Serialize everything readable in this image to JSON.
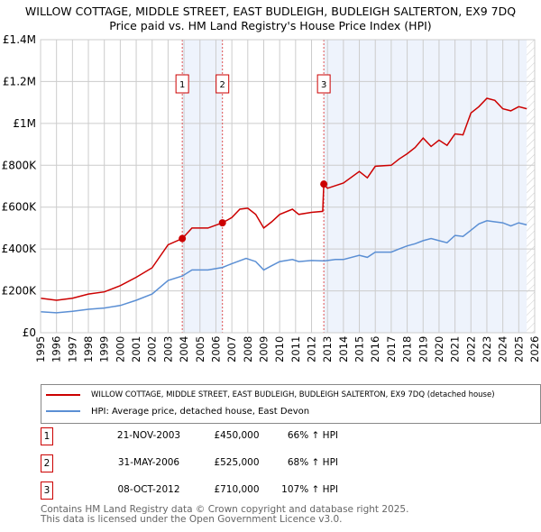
{
  "title": "WILLOW COTTAGE, MIDDLE STREET, EAST BUDLEIGH, BUDLEIGH SALTERTON, EX9 7DQ",
  "subtitle": "Price paid vs. HM Land Registry's House Price Index (HPI)",
  "legend": {
    "property": "WILLOW COTTAGE, MIDDLE STREET, EAST BUDLEIGH, BUDLEIGH SALTERTON, EX9 7DQ (detached house)",
    "hpi": "HPI: Average price, detached house, East Devon"
  },
  "transactions": [
    {
      "num": "1",
      "date": "21-NOV-2003",
      "price": "£450,000",
      "hpi": "66% ↑ HPI"
    },
    {
      "num": "2",
      "date": "31-MAY-2006",
      "price": "£525,000",
      "hpi": "68% ↑ HPI"
    },
    {
      "num": "3",
      "date": "08-OCT-2012",
      "price": "£710,000",
      "hpi": "107% ↑ HPI"
    }
  ],
  "footer": {
    "line1": "Contains HM Land Registry data © Crown copyright and database right 2025.",
    "line2": "This data is licensed under the Open Government Licence v3.0."
  },
  "colors": {
    "property": "#cc0000",
    "hpi": "#5b8fd4",
    "shade": "#eef3fc"
  },
  "chart_data": {
    "type": "line",
    "xlim": [
      1995,
      2026
    ],
    "ylim": [
      0,
      1400000
    ],
    "yticks": [
      0,
      200000,
      400000,
      600000,
      800000,
      1000000,
      1200000,
      1400000
    ],
    "ytick_labels": [
      "£0",
      "£200K",
      "£400K",
      "£600K",
      "£800K",
      "£1M",
      "£1.2M",
      "£1.4M"
    ],
    "xticks": [
      "1995",
      "1996",
      "1997",
      "1998",
      "1999",
      "2000",
      "2001",
      "2002",
      "2003",
      "2004",
      "2005",
      "2006",
      "2007",
      "2008",
      "2009",
      "2010",
      "2011",
      "2012",
      "2013",
      "2014",
      "2015",
      "2016",
      "2017",
      "2018",
      "2019",
      "2020",
      "2021",
      "2022",
      "2023",
      "2024",
      "2025",
      "2026"
    ],
    "shaded_ranges": [
      [
        2003.89,
        2006.41
      ],
      [
        2012.77,
        2025.5
      ]
    ],
    "hatched_from": 2025.5,
    "sales": [
      {
        "label": "1",
        "x": 2003.89,
        "y": 450000
      },
      {
        "label": "2",
        "x": 2006.41,
        "y": 525000
      },
      {
        "label": "3",
        "x": 2012.77,
        "y": 710000
      }
    ],
    "series": [
      {
        "name": "property",
        "x": [
          1995,
          1996,
          1997,
          1998,
          1999,
          2000,
          2001,
          2002,
          2003,
          2003.89,
          2004.5,
          2005.5,
          2006.41,
          2007,
          2007.5,
          2008,
          2008.5,
          2009,
          2009.5,
          2010,
          2010.8,
          2011.2,
          2012,
          2012.7,
          2012.77,
          2013,
          2014,
          2015,
          2015.5,
          2016,
          2017,
          2017.5,
          2018,
          2018.5,
          2019,
          2019.5,
          2020,
          2020.5,
          2021,
          2021.5,
          2022,
          2022.5,
          2023,
          2023.5,
          2024,
          2024.5,
          2025,
          2025.5
        ],
        "y": [
          165000,
          155000,
          165000,
          185000,
          195000,
          225000,
          265000,
          310000,
          420000,
          450000,
          500000,
          500000,
          525000,
          550000,
          590000,
          595000,
          565000,
          500000,
          530000,
          565000,
          590000,
          565000,
          575000,
          580000,
          710000,
          690000,
          715000,
          770000,
          740000,
          795000,
          800000,
          830000,
          855000,
          885000,
          930000,
          890000,
          920000,
          895000,
          950000,
          945000,
          1050000,
          1080000,
          1120000,
          1110000,
          1070000,
          1060000,
          1080000,
          1070000
        ]
      },
      {
        "name": "hpi",
        "x": [
          1995,
          1996,
          1997,
          1998,
          1999,
          2000,
          2001,
          2002,
          2003,
          2003.89,
          2004.5,
          2005.5,
          2006.41,
          2007,
          2007.9,
          2008.5,
          2009,
          2009.5,
          2010,
          2010.8,
          2011.2,
          2012,
          2012.8,
          2013.5,
          2014,
          2015,
          2015.5,
          2016,
          2017,
          2017.5,
          2018,
          2018.5,
          2019,
          2019.5,
          2020,
          2020.5,
          2021,
          2021.5,
          2022,
          2022.5,
          2023,
          2023.5,
          2024,
          2024.5,
          2025,
          2025.5
        ],
        "y": [
          100000,
          95000,
          102000,
          112000,
          118000,
          130000,
          155000,
          185000,
          250000,
          271000,
          300000,
          300000,
          312000,
          330000,
          355000,
          340000,
          300000,
          320000,
          340000,
          350000,
          340000,
          345000,
          343000,
          350000,
          350000,
          370000,
          360000,
          385000,
          385000,
          400000,
          415000,
          425000,
          440000,
          450000,
          440000,
          430000,
          465000,
          460000,
          490000,
          520000,
          535000,
          530000,
          525000,
          510000,
          525000,
          515000
        ]
      }
    ]
  }
}
